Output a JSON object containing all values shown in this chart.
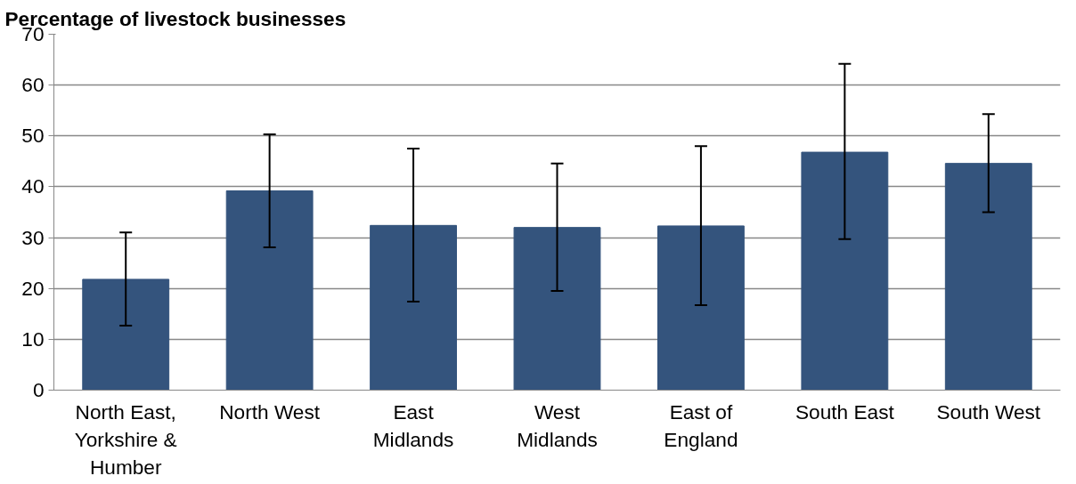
{
  "chart_data": {
    "type": "bar",
    "ylabel": "Percentage of livestock businesses",
    "categories": [
      "North East,\nYorkshire &\nHumber",
      "North West",
      "East\nMidlands",
      "West\nMidlands",
      "East of\nEngland",
      "South East",
      "South West"
    ],
    "values": [
      21.8,
      39.2,
      32.4,
      32.0,
      32.3,
      46.8,
      44.6
    ],
    "errors": [
      [
        12.7,
        31.0
      ],
      [
        28.1,
        50.3
      ],
      [
        17.4,
        47.5
      ],
      [
        19.5,
        44.6
      ],
      [
        16.7,
        48.0
      ],
      [
        29.7,
        64.2
      ],
      [
        35.0,
        54.3
      ]
    ],
    "color": "#34547d",
    "ylim": [
      0,
      70
    ],
    "yticks": [
      0,
      10,
      20,
      30,
      40,
      50,
      60,
      70
    ],
    "grid": "y"
  }
}
